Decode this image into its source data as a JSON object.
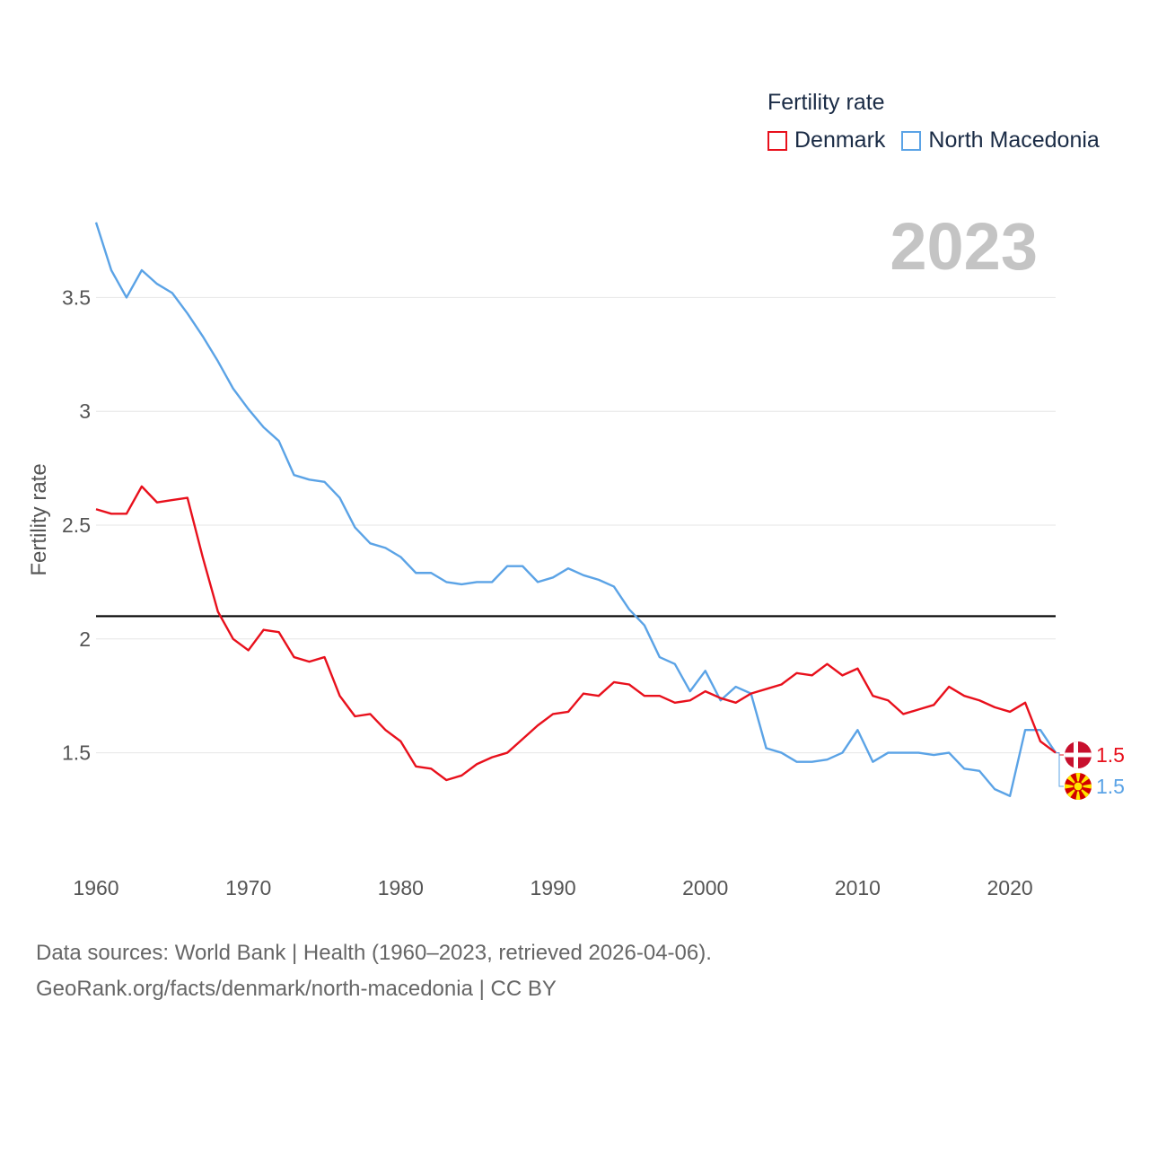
{
  "chart_data": {
    "type": "line",
    "title": "2023",
    "legend_title": "Fertility rate",
    "ylabel": "Fertility rate",
    "xlabel": "",
    "xlim": [
      1960,
      2023
    ],
    "ylim": [
      1.1,
      3.9
    ],
    "x_ticks": [
      1960,
      1970,
      1980,
      1990,
      2000,
      2010,
      2020
    ],
    "y_ticks": [
      1.5,
      2,
      2.5,
      3,
      3.5
    ],
    "y_tick_labels": [
      "1.5",
      "2",
      "2.5",
      "3",
      "3.5"
    ],
    "reference_line": 2.1,
    "grid": true,
    "legend_position": "top-right",
    "x": [
      1960,
      1961,
      1962,
      1963,
      1964,
      1965,
      1966,
      1967,
      1968,
      1969,
      1970,
      1971,
      1972,
      1973,
      1974,
      1975,
      1976,
      1977,
      1978,
      1979,
      1980,
      1981,
      1982,
      1983,
      1984,
      1985,
      1986,
      1987,
      1988,
      1989,
      1990,
      1991,
      1992,
      1993,
      1994,
      1995,
      1996,
      1997,
      1998,
      1999,
      2000,
      2001,
      2002,
      2003,
      2004,
      2005,
      2006,
      2007,
      2008,
      2009,
      2010,
      2011,
      2012,
      2013,
      2014,
      2015,
      2016,
      2017,
      2018,
      2019,
      2020,
      2021,
      2022,
      2023
    ],
    "series": [
      {
        "name": "Denmark",
        "color": "#e8101c",
        "end_label": "1.5",
        "values": [
          2.57,
          2.55,
          2.55,
          2.67,
          2.6,
          2.61,
          2.62,
          2.36,
          2.12,
          2.0,
          1.95,
          2.04,
          2.03,
          1.92,
          1.9,
          1.92,
          1.75,
          1.66,
          1.67,
          1.6,
          1.55,
          1.44,
          1.43,
          1.38,
          1.4,
          1.45,
          1.48,
          1.5,
          1.56,
          1.62,
          1.67,
          1.68,
          1.76,
          1.75,
          1.81,
          1.8,
          1.75,
          1.75,
          1.72,
          1.73,
          1.77,
          1.74,
          1.72,
          1.76,
          1.78,
          1.8,
          1.85,
          1.84,
          1.89,
          1.84,
          1.87,
          1.75,
          1.73,
          1.67,
          1.69,
          1.71,
          1.79,
          1.75,
          1.73,
          1.7,
          1.68,
          1.72,
          1.55,
          1.5
        ]
      },
      {
        "name": "North Macedonia",
        "color": "#5ba3e6",
        "end_label": "1.5",
        "values": [
          3.83,
          3.62,
          3.5,
          3.62,
          3.56,
          3.52,
          3.43,
          3.33,
          3.22,
          3.1,
          3.01,
          2.93,
          2.87,
          2.72,
          2.7,
          2.69,
          2.62,
          2.49,
          2.42,
          2.4,
          2.36,
          2.29,
          2.29,
          2.25,
          2.24,
          2.25,
          2.25,
          2.32,
          2.32,
          2.25,
          2.27,
          2.31,
          2.28,
          2.26,
          2.23,
          2.13,
          2.06,
          1.92,
          1.89,
          1.77,
          1.86,
          1.73,
          1.79,
          1.76,
          1.52,
          1.5,
          1.46,
          1.46,
          1.47,
          1.5,
          1.6,
          1.46,
          1.5,
          1.5,
          1.5,
          1.49,
          1.5,
          1.43,
          1.42,
          1.34,
          1.31,
          1.6,
          1.6,
          1.5
        ]
      }
    ]
  },
  "footer": {
    "sources_line1": "Data sources: World Bank | Health (1960–2023, retrieved 2026-04-06).",
    "sources_line2": "GeoRank.org/facts/denmark/north-macedonia | CC BY"
  },
  "icons": {
    "denmark_flag": "denmark-flag-icon",
    "north_macedonia_flag": "north-macedonia-flag-icon"
  }
}
